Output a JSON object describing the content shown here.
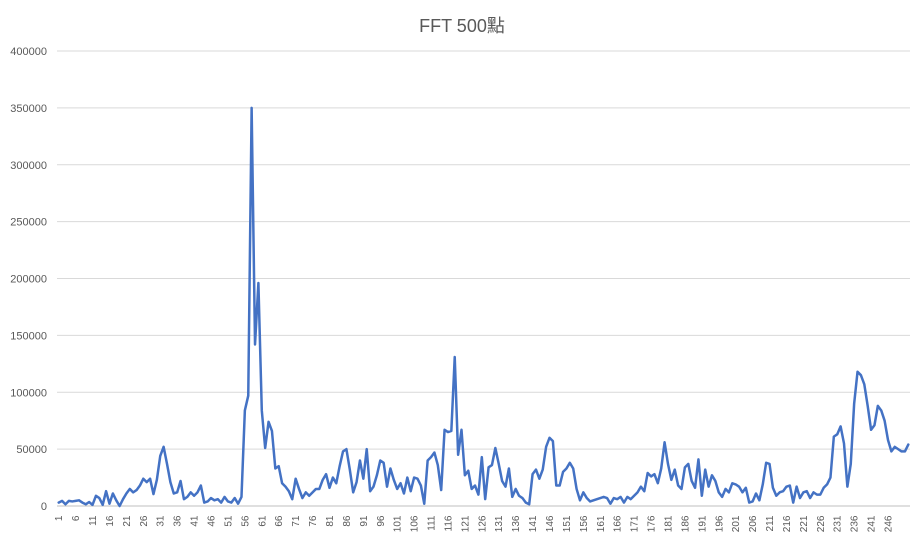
{
  "chart_data": {
    "type": "line",
    "title": "FFT 500點",
    "xlabel": "",
    "ylabel": "",
    "ylim": [
      0,
      400000
    ],
    "yticks": [
      0,
      50000,
      100000,
      150000,
      200000,
      250000,
      300000,
      350000,
      400000
    ],
    "ytick_labels": [
      "0",
      "50000",
      "100000",
      "150000",
      "200000",
      "250000",
      "300000",
      "350000",
      "400000"
    ],
    "xtick_labels": [
      "1",
      "6",
      "11",
      "16",
      "21",
      "26",
      "31",
      "36",
      "41",
      "46",
      "51",
      "56",
      "61",
      "66",
      "71",
      "76",
      "81",
      "86",
      "91",
      "96",
      "101",
      "106",
      "111",
      "116",
      "121",
      "126",
      "131",
      "136",
      "141",
      "146",
      "151",
      "156",
      "161",
      "166",
      "171",
      "176",
      "181",
      "186",
      "191",
      "196",
      "201",
      "206",
      "211",
      "216",
      "221",
      "226",
      "231",
      "236",
      "241",
      "246"
    ],
    "grid": true,
    "series_color": "#4472C4",
    "series": [
      {
        "values": [
          3000,
          4500,
          1500,
          4500,
          4000,
          4500,
          5000,
          3000,
          1500,
          3500,
          1000,
          9000,
          7000,
          1000,
          13000,
          2000,
          11000,
          5000,
          0,
          6000,
          11000,
          15000,
          12000,
          14000,
          18000,
          24000,
          21000,
          24000,
          10500,
          23000,
          44000,
          52000,
          37000,
          21000,
          11000,
          12000,
          22000,
          6000,
          8000,
          12000,
          9000,
          12000,
          18000,
          3000,
          4000,
          7000,
          5000,
          6000,
          3000,
          8000,
          4000,
          3000,
          7000,
          2000,
          8000,
          84000,
          97000,
          350000,
          142000,
          196000,
          84000,
          51000,
          74000,
          66000,
          33000,
          35000,
          20000,
          17000,
          13000,
          6000,
          24000,
          15000,
          7000,
          12000,
          9000,
          12000,
          15000,
          15000,
          23000,
          28000,
          16000,
          25000,
          20000,
          35000,
          48000,
          50000,
          32000,
          12000,
          21000,
          40000,
          24000,
          50000,
          13000,
          17000,
          27000,
          40000,
          38000,
          17000,
          33000,
          23000,
          15000,
          20000,
          11000,
          25000,
          13000,
          25000,
          24000,
          18000,
          2000,
          40000,
          43000,
          47000,
          36000,
          14000,
          67000,
          65000,
          66000,
          131000,
          45000,
          67000,
          27000,
          31000,
          15000,
          18000,
          10000,
          43000,
          6000,
          34000,
          36000,
          51000,
          37000,
          22000,
          17000,
          33000,
          8000,
          15000,
          9000,
          7000,
          3000,
          1500,
          28000,
          32000,
          24000,
          32000,
          52000,
          60000,
          57000,
          18000,
          18000,
          30000,
          33000,
          38000,
          33000,
          15000,
          5000,
          12000,
          7000,
          4000,
          5000,
          6000,
          7000,
          8000,
          7000,
          2000,
          7000,
          6000,
          8000,
          3000,
          8000,
          6000,
          9000,
          12000,
          17000,
          13000,
          29000,
          26000,
          28000,
          20000,
          33000,
          56000,
          37000,
          23000,
          32000,
          18000,
          15000,
          34000,
          37000,
          22000,
          16000,
          41000,
          9000,
          32000,
          17000,
          27000,
          22000,
          12000,
          8000,
          15000,
          12000,
          20000,
          19000,
          17000,
          12000,
          16000,
          3000,
          4000,
          11000,
          5000,
          19000,
          38000,
          37000,
          16000,
          9000,
          12000,
          13000,
          17000,
          18000,
          3000,
          17000,
          7000,
          12000,
          13000,
          7000,
          12000,
          10000,
          10000,
          16000,
          19000,
          25000,
          61000,
          63000,
          70000,
          55000,
          17000,
          37000,
          90000,
          118000,
          115000,
          107000,
          88000,
          67000,
          71000,
          88000,
          84000,
          75000,
          58000,
          48000,
          52000,
          50000,
          48000,
          48000,
          54000
        ]
      }
    ]
  }
}
